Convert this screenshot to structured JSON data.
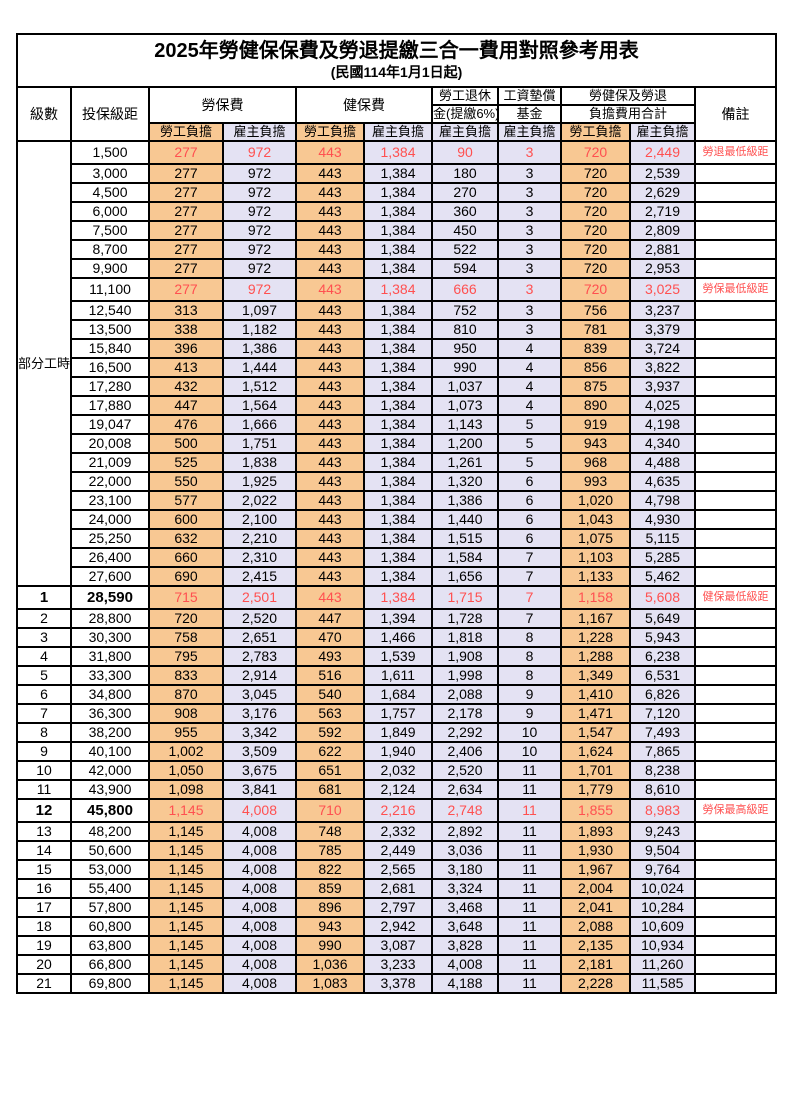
{
  "title": "2025年勞健保保費及勞退提繳三合一費用對照參考用表",
  "subtitle": "(民國114年1月1日起)",
  "header": {
    "level": "級數",
    "bracket": "投保級距",
    "labor_ins": "勞保費",
    "health_ins": "健保費",
    "pension_line1": "勞工退休",
    "pension_line2": "金(提繳6%)",
    "wage_fund_line1": "工資墊償",
    "wage_fund_line2": "基金",
    "total_line1": "勞健保及勞退",
    "total_line2": "負擔費用合計",
    "remark": "備註",
    "employee": "勞工負擔",
    "employer": "雇主負擔"
  },
  "colors": {
    "employee_fill": "#F8C893",
    "employer_fill": "#E4E2F3",
    "highlight_text": "#FF5050",
    "border": "#000000"
  },
  "table": {
    "part_time_label": "部分工時",
    "part_time_span": 23,
    "rows": [
      {
        "level": "",
        "bracket": "1,500",
        "values": [
          "277",
          "972",
          "443",
          "1,384",
          "90",
          "3",
          "720",
          "2,449"
        ],
        "remark": "勞退最低級距",
        "highlight": true,
        "emph": false
      },
      {
        "level": "",
        "bracket": "3,000",
        "values": [
          "277",
          "972",
          "443",
          "1,384",
          "180",
          "3",
          "720",
          "2,539"
        ],
        "remark": "",
        "highlight": false,
        "emph": false
      },
      {
        "level": "",
        "bracket": "4,500",
        "values": [
          "277",
          "972",
          "443",
          "1,384",
          "270",
          "3",
          "720",
          "2,629"
        ],
        "remark": "",
        "highlight": false,
        "emph": false
      },
      {
        "level": "",
        "bracket": "6,000",
        "values": [
          "277",
          "972",
          "443",
          "1,384",
          "360",
          "3",
          "720",
          "2,719"
        ],
        "remark": "",
        "highlight": false,
        "emph": false
      },
      {
        "level": "",
        "bracket": "7,500",
        "values": [
          "277",
          "972",
          "443",
          "1,384",
          "450",
          "3",
          "720",
          "2,809"
        ],
        "remark": "",
        "highlight": false,
        "emph": false
      },
      {
        "level": "",
        "bracket": "8,700",
        "values": [
          "277",
          "972",
          "443",
          "1,384",
          "522",
          "3",
          "720",
          "2,881"
        ],
        "remark": "",
        "highlight": false,
        "emph": false
      },
      {
        "level": "",
        "bracket": "9,900",
        "values": [
          "277",
          "972",
          "443",
          "1,384",
          "594",
          "3",
          "720",
          "2,953"
        ],
        "remark": "",
        "highlight": false,
        "emph": false
      },
      {
        "level": "",
        "bracket": "11,100",
        "values": [
          "277",
          "972",
          "443",
          "1,384",
          "666",
          "3",
          "720",
          "3,025"
        ],
        "remark": "勞保最低級距",
        "highlight": true,
        "emph": false
      },
      {
        "level": "",
        "bracket": "12,540",
        "values": [
          "313",
          "1,097",
          "443",
          "1,384",
          "752",
          "3",
          "756",
          "3,237"
        ],
        "remark": "",
        "highlight": false,
        "emph": false
      },
      {
        "level": "",
        "bracket": "13,500",
        "values": [
          "338",
          "1,182",
          "443",
          "1,384",
          "810",
          "3",
          "781",
          "3,379"
        ],
        "remark": "",
        "highlight": false,
        "emph": false
      },
      {
        "level": "",
        "bracket": "15,840",
        "values": [
          "396",
          "1,386",
          "443",
          "1,384",
          "950",
          "4",
          "839",
          "3,724"
        ],
        "remark": "",
        "highlight": false,
        "emph": false
      },
      {
        "level": "",
        "bracket": "16,500",
        "values": [
          "413",
          "1,444",
          "443",
          "1,384",
          "990",
          "4",
          "856",
          "3,822"
        ],
        "remark": "",
        "highlight": false,
        "emph": false
      },
      {
        "level": "",
        "bracket": "17,280",
        "values": [
          "432",
          "1,512",
          "443",
          "1,384",
          "1,037",
          "4",
          "875",
          "3,937"
        ],
        "remark": "",
        "highlight": false,
        "emph": false
      },
      {
        "level": "",
        "bracket": "17,880",
        "values": [
          "447",
          "1,564",
          "443",
          "1,384",
          "1,073",
          "4",
          "890",
          "4,025"
        ],
        "remark": "",
        "highlight": false,
        "emph": false
      },
      {
        "level": "",
        "bracket": "19,047",
        "values": [
          "476",
          "1,666",
          "443",
          "1,384",
          "1,143",
          "5",
          "919",
          "4,198"
        ],
        "remark": "",
        "highlight": false,
        "emph": false
      },
      {
        "level": "",
        "bracket": "20,008",
        "values": [
          "500",
          "1,751",
          "443",
          "1,384",
          "1,200",
          "5",
          "943",
          "4,340"
        ],
        "remark": "",
        "highlight": false,
        "emph": false
      },
      {
        "level": "",
        "bracket": "21,009",
        "values": [
          "525",
          "1,838",
          "443",
          "1,384",
          "1,261",
          "5",
          "968",
          "4,488"
        ],
        "remark": "",
        "highlight": false,
        "emph": false
      },
      {
        "level": "",
        "bracket": "22,000",
        "values": [
          "550",
          "1,925",
          "443",
          "1,384",
          "1,320",
          "6",
          "993",
          "4,635"
        ],
        "remark": "",
        "highlight": false,
        "emph": false
      },
      {
        "level": "",
        "bracket": "23,100",
        "values": [
          "577",
          "2,022",
          "443",
          "1,384",
          "1,386",
          "6",
          "1,020",
          "4,798"
        ],
        "remark": "",
        "highlight": false,
        "emph": false
      },
      {
        "level": "",
        "bracket": "24,000",
        "values": [
          "600",
          "2,100",
          "443",
          "1,384",
          "1,440",
          "6",
          "1,043",
          "4,930"
        ],
        "remark": "",
        "highlight": false,
        "emph": false
      },
      {
        "level": "",
        "bracket": "25,250",
        "values": [
          "632",
          "2,210",
          "443",
          "1,384",
          "1,515",
          "6",
          "1,075",
          "5,115"
        ],
        "remark": "",
        "highlight": false,
        "emph": false
      },
      {
        "level": "",
        "bracket": "26,400",
        "values": [
          "660",
          "2,310",
          "443",
          "1,384",
          "1,584",
          "7",
          "1,103",
          "5,285"
        ],
        "remark": "",
        "highlight": false,
        "emph": false
      },
      {
        "level": "",
        "bracket": "27,600",
        "values": [
          "690",
          "2,415",
          "443",
          "1,384",
          "1,656",
          "7",
          "1,133",
          "5,462"
        ],
        "remark": "",
        "highlight": false,
        "emph": false
      },
      {
        "level": "1",
        "bracket": "28,590",
        "values": [
          "715",
          "2,501",
          "443",
          "1,384",
          "1,715",
          "7",
          "1,158",
          "5,608"
        ],
        "remark": "健保最低級距",
        "highlight": true,
        "emph": true
      },
      {
        "level": "2",
        "bracket": "28,800",
        "values": [
          "720",
          "2,520",
          "447",
          "1,394",
          "1,728",
          "7",
          "1,167",
          "5,649"
        ],
        "remark": "",
        "highlight": false,
        "emph": false
      },
      {
        "level": "3",
        "bracket": "30,300",
        "values": [
          "758",
          "2,651",
          "470",
          "1,466",
          "1,818",
          "8",
          "1,228",
          "5,943"
        ],
        "remark": "",
        "highlight": false,
        "emph": false
      },
      {
        "level": "4",
        "bracket": "31,800",
        "values": [
          "795",
          "2,783",
          "493",
          "1,539",
          "1,908",
          "8",
          "1,288",
          "6,238"
        ],
        "remark": "",
        "highlight": false,
        "emph": false
      },
      {
        "level": "5",
        "bracket": "33,300",
        "values": [
          "833",
          "2,914",
          "516",
          "1,611",
          "1,998",
          "8",
          "1,349",
          "6,531"
        ],
        "remark": "",
        "highlight": false,
        "emph": false
      },
      {
        "level": "6",
        "bracket": "34,800",
        "values": [
          "870",
          "3,045",
          "540",
          "1,684",
          "2,088",
          "9",
          "1,410",
          "6,826"
        ],
        "remark": "",
        "highlight": false,
        "emph": false
      },
      {
        "level": "7",
        "bracket": "36,300",
        "values": [
          "908",
          "3,176",
          "563",
          "1,757",
          "2,178",
          "9",
          "1,471",
          "7,120"
        ],
        "remark": "",
        "highlight": false,
        "emph": false
      },
      {
        "level": "8",
        "bracket": "38,200",
        "values": [
          "955",
          "3,342",
          "592",
          "1,849",
          "2,292",
          "10",
          "1,547",
          "7,493"
        ],
        "remark": "",
        "highlight": false,
        "emph": false
      },
      {
        "level": "9",
        "bracket": "40,100",
        "values": [
          "1,002",
          "3,509",
          "622",
          "1,940",
          "2,406",
          "10",
          "1,624",
          "7,865"
        ],
        "remark": "",
        "highlight": false,
        "emph": false
      },
      {
        "level": "10",
        "bracket": "42,000",
        "values": [
          "1,050",
          "3,675",
          "651",
          "2,032",
          "2,520",
          "11",
          "1,701",
          "8,238"
        ],
        "remark": "",
        "highlight": false,
        "emph": false
      },
      {
        "level": "11",
        "bracket": "43,900",
        "values": [
          "1,098",
          "3,841",
          "681",
          "2,124",
          "2,634",
          "11",
          "1,779",
          "8,610"
        ],
        "remark": "",
        "highlight": false,
        "emph": false
      },
      {
        "level": "12",
        "bracket": "45,800",
        "values": [
          "1,145",
          "4,008",
          "710",
          "2,216",
          "2,748",
          "11",
          "1,855",
          "8,983"
        ],
        "remark": "勞保最高級距",
        "highlight": true,
        "emph": true
      },
      {
        "level": "13",
        "bracket": "48,200",
        "values": [
          "1,145",
          "4,008",
          "748",
          "2,332",
          "2,892",
          "11",
          "1,893",
          "9,243"
        ],
        "remark": "",
        "highlight": false,
        "emph": false
      },
      {
        "level": "14",
        "bracket": "50,600",
        "values": [
          "1,145",
          "4,008",
          "785",
          "2,449",
          "3,036",
          "11",
          "1,930",
          "9,504"
        ],
        "remark": "",
        "highlight": false,
        "emph": false
      },
      {
        "level": "15",
        "bracket": "53,000",
        "values": [
          "1,145",
          "4,008",
          "822",
          "2,565",
          "3,180",
          "11",
          "1,967",
          "9,764"
        ],
        "remark": "",
        "highlight": false,
        "emph": false
      },
      {
        "level": "16",
        "bracket": "55,400",
        "values": [
          "1,145",
          "4,008",
          "859",
          "2,681",
          "3,324",
          "11",
          "2,004",
          "10,024"
        ],
        "remark": "",
        "highlight": false,
        "emph": false
      },
      {
        "level": "17",
        "bracket": "57,800",
        "values": [
          "1,145",
          "4,008",
          "896",
          "2,797",
          "3,468",
          "11",
          "2,041",
          "10,284"
        ],
        "remark": "",
        "highlight": false,
        "emph": false
      },
      {
        "level": "18",
        "bracket": "60,800",
        "values": [
          "1,145",
          "4,008",
          "943",
          "2,942",
          "3,648",
          "11",
          "2,088",
          "10,609"
        ],
        "remark": "",
        "highlight": false,
        "emph": false
      },
      {
        "level": "19",
        "bracket": "63,800",
        "values": [
          "1,145",
          "4,008",
          "990",
          "3,087",
          "3,828",
          "11",
          "2,135",
          "10,934"
        ],
        "remark": "",
        "highlight": false,
        "emph": false
      },
      {
        "level": "20",
        "bracket": "66,800",
        "values": [
          "1,145",
          "4,008",
          "1,036",
          "3,233",
          "4,008",
          "11",
          "2,181",
          "11,260"
        ],
        "remark": "",
        "highlight": false,
        "emph": false
      },
      {
        "level": "21",
        "bracket": "69,800",
        "values": [
          "1,145",
          "4,008",
          "1,083",
          "3,378",
          "4,188",
          "11",
          "2,228",
          "11,585"
        ],
        "remark": "",
        "highlight": false,
        "emph": false
      }
    ]
  }
}
